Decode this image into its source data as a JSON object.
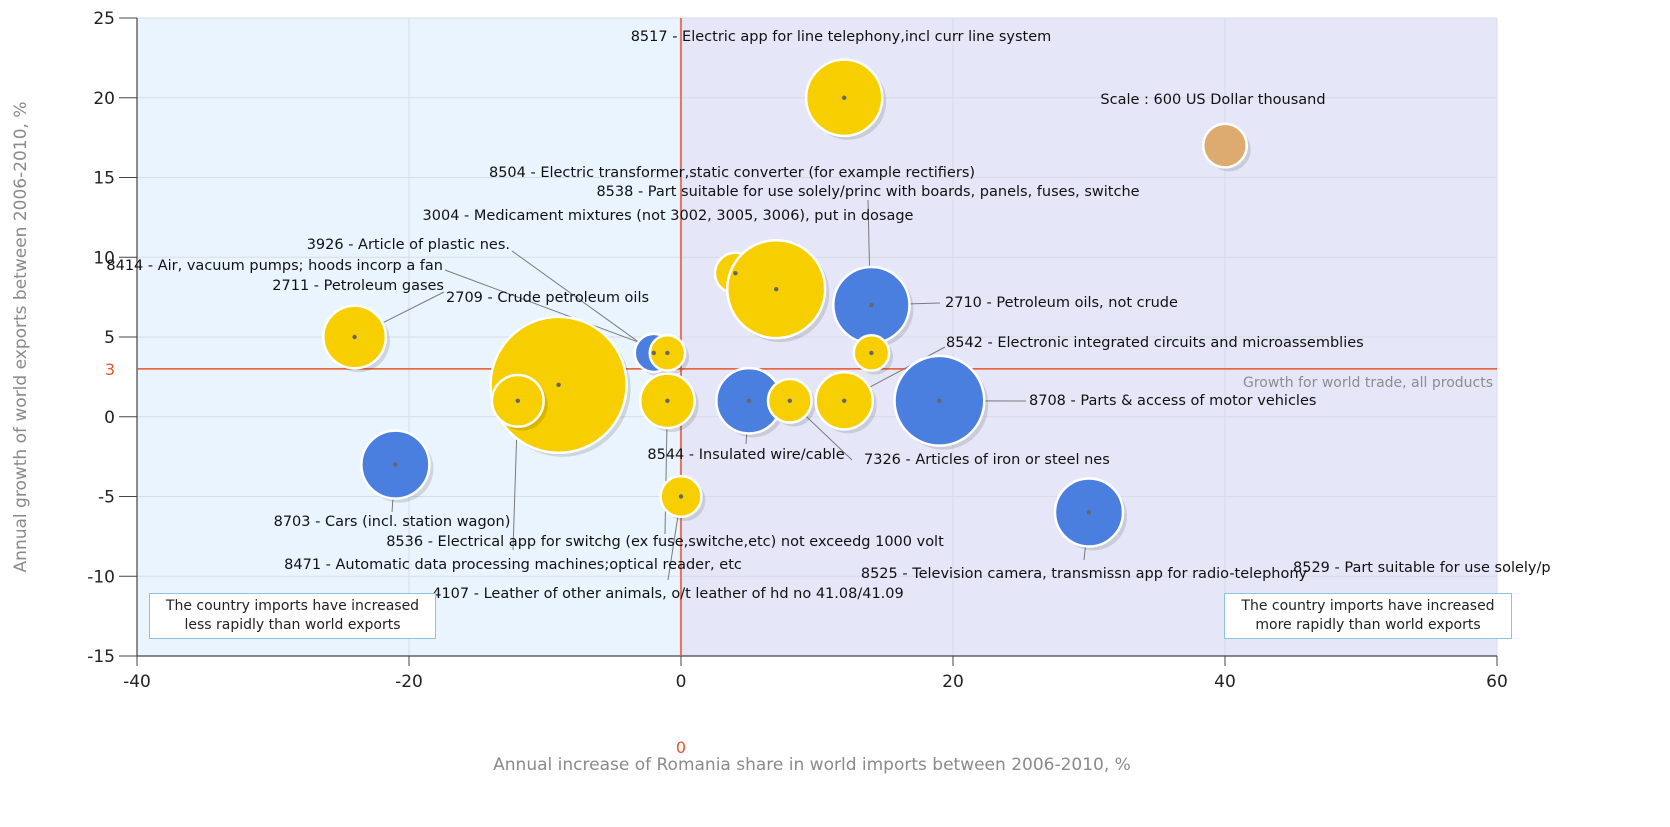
{
  "chart_data": {
    "type": "scatter",
    "subtype": "bubble",
    "title": "",
    "xlabel": "Annual increase of Romania share in world imports between 2006-2010, %",
    "ylabel": "Annual growth of world exports between 2006-2010, %",
    "xlim": [
      -40,
      60
    ],
    "ylim": [
      -15,
      25
    ],
    "xticks": [
      "-40",
      "-20",
      "0",
      "20",
      "40",
      "60"
    ],
    "yticks": [
      "-15",
      "-10",
      "-5",
      "0",
      "5",
      "10",
      "15",
      "20",
      "25"
    ],
    "grid": true,
    "reference_lines": {
      "x": {
        "value": 0,
        "label": "0"
      },
      "y": {
        "value": 3,
        "label": "3",
        "caption": "Growth for world trade, all products"
      }
    },
    "scale_note": "Scale : 600 US Dollar thousand",
    "quadrant_notes": {
      "left": [
        "The country imports have increased",
        "less rapidly than world exports"
      ],
      "right": [
        "The country imports have increased",
        "more rapidly than world exports"
      ]
    },
    "colors": {
      "yellow": "#f7cf00",
      "blue": "#4a7fe0",
      "scale": "#ddaa70",
      "ref_line": "#e8542a",
      "left_bg": "#eaf4ff",
      "right_bg": "#e5e7f8"
    },
    "points": [
      {
        "x": 12,
        "y": 20,
        "r": 2.8,
        "color": "yellow",
        "label": "8517 - Electric app for line telephony,incl curr line system"
      },
      {
        "x": 40,
        "y": 17,
        "r": 1.6,
        "color": "scale",
        "label": "Scale : 600 US Dollar thousand"
      },
      {
        "x": 4,
        "y": 9,
        "r": 1.5,
        "color": "yellow",
        "label": "8504 - Electric transformer,static converter (for example rectifiers)"
      },
      {
        "x": 7,
        "y": 8,
        "r": 3.6,
        "color": "yellow",
        "label": "3004 - Medicament mixtures (not 3002, 3005, 3006), put in dosage"
      },
      {
        "x": 14,
        "y": 7,
        "r": 2.8,
        "color": "blue",
        "label": "2710 - Petroleum oils, not crude"
      },
      {
        "x": 14,
        "y": 4,
        "r": 1.3,
        "color": "yellow",
        "label": "8538 - Part suitable for use solely/princ with boards, panels, fuses, switche"
      },
      {
        "x": -24,
        "y": 5,
        "r": 2.3,
        "color": "yellow",
        "label": "2711 - Petroleum gases"
      },
      {
        "x": -2,
        "y": 4,
        "r": 1.4,
        "color": "blue",
        "label": "3926 - Article of plastic nes."
      },
      {
        "x": -1,
        "y": 4,
        "r": 1.3,
        "color": "yellow",
        "label": "8414 - Air, vacuum pumps; hoods incorp a fan"
      },
      {
        "x": -9,
        "y": 2,
        "r": 5.0,
        "color": "yellow",
        "label": "2709 - Crude petroleum oils"
      },
      {
        "x": -12,
        "y": 1,
        "r": 1.9,
        "color": "yellow",
        "label": "8471 - Automatic data processing machines;optical reader, etc"
      },
      {
        "x": -1,
        "y": 1,
        "r": 2.0,
        "color": "yellow",
        "label": "8536 - Electrical app for switchg (ex fuse,switche,etc) not exceedg 1000 volt"
      },
      {
        "x": 5,
        "y": 1,
        "r": 2.4,
        "color": "blue",
        "label": "8544 - Insulated wire/cable"
      },
      {
        "x": 8,
        "y": 1,
        "r": 1.6,
        "color": "yellow",
        "label": "7326 - Articles of iron or steel nes"
      },
      {
        "x": 12,
        "y": 1,
        "r": 2.1,
        "color": "yellow",
        "label": "8542 - Electronic integrated circuits and microassemblies"
      },
      {
        "x": 19,
        "y": 1,
        "r": 3.3,
        "color": "blue",
        "label": "8708 - Parts & access of motor vehicles"
      },
      {
        "x": -21,
        "y": -3,
        "r": 2.5,
        "color": "blue",
        "label": "8703 - Cars (incl. station wagon)"
      },
      {
        "x": 0,
        "y": -5,
        "r": 1.5,
        "color": "yellow",
        "label": "4107 - Leather of other animals, o/t leather of hd no 41.08/41.09"
      },
      {
        "x": 30,
        "y": -6,
        "r": 2.5,
        "color": "blue",
        "label": "8525 - Television camera, transmissn app for radio-telephony"
      },
      {
        "x": 45,
        "y": -12,
        "r": 1.0,
        "color": "yellow",
        "label": "8529 - Part suitable for use solely/p"
      }
    ]
  }
}
